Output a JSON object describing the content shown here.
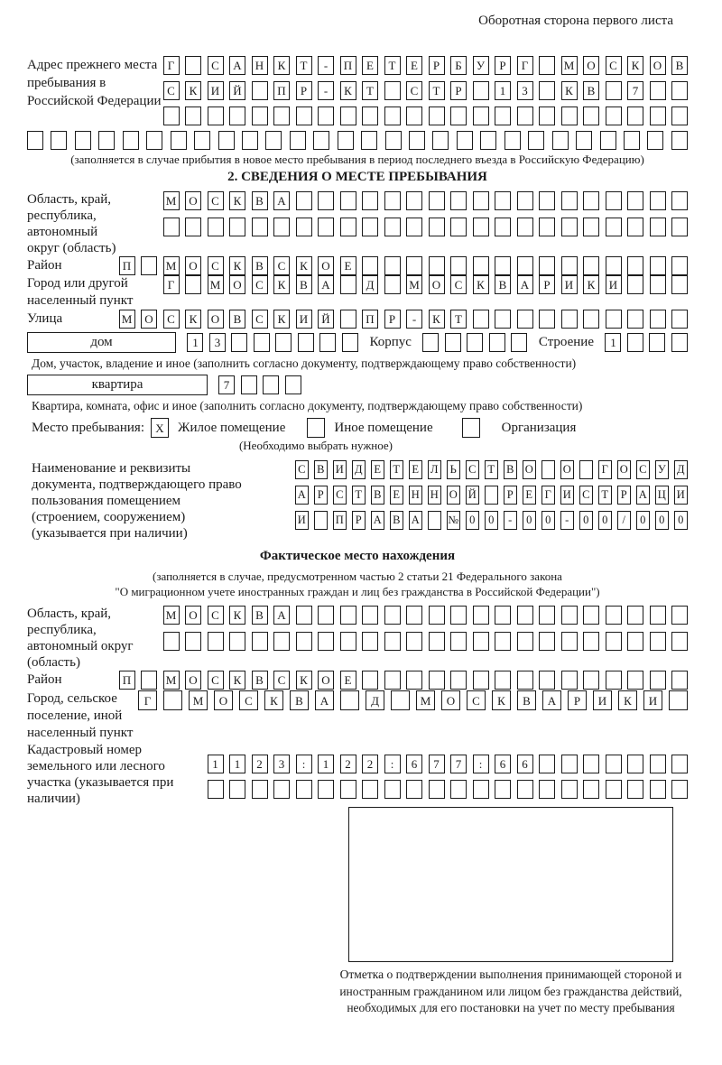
{
  "page": {
    "header_note": "Оборотная сторона первого листа"
  },
  "prev_address": {
    "label": "Адрес прежнего места пребывания в Российской Федерации",
    "row1": "Г_САНКТ-ПЕТЕРБУРГ_МОСКОВ",
    "row2": "СКИЙ_ПР-КТ_СТР_13_КВ_7__",
    "row3": "________________________",
    "row4": "____________________________",
    "note": "(заполняется в случае прибытия в новое место пребывания в период последнего въезда в Российскую Федерацию)"
  },
  "section2": {
    "title": "2. СВЕДЕНИЯ О МЕСТЕ ПРЕБЫВАНИЯ",
    "oblast": {
      "label": "Область, край, республика, автономный округ (область)",
      "row1": "МОСКВА__________________",
      "row2": "________________________"
    },
    "raion": {
      "label": "Район",
      "row": "П_МОСКВСКОЕ_______________"
    },
    "gorod": {
      "label": "Город или другой населенный пункт",
      "row": "Г_МОСКВА_Д_МОСКВАРИКИ___"
    },
    "ulitsa": {
      "label": "Улица",
      "row": "МОСКОВСКИЙ_ПР-КТ__________"
    },
    "dom": {
      "label": "дом",
      "cells": "13______",
      "korpus_label": "Корпус",
      "korpus_cells": "_____",
      "stroenie_label": "Строение",
      "stroenie_cells": "1___",
      "caption": "Дом, участок, владение и иное (заполнить согласно документу, подтверждающему право собственности)"
    },
    "kvartira": {
      "label": "квартира",
      "cells": "7___",
      "caption": "Квартира, комната, офис и иное (заполнить согласно документу, подтверждающему право собственности)"
    },
    "mesto": {
      "label": "Место пребывания:",
      "zhiloe_checked": "X",
      "zhiloe": "Жилое помещение",
      "inoe_checked": "_",
      "inoe": "Иное помещение",
      "org_checked": "_",
      "org": "Организация",
      "note": "(Необходимо выбрать нужное)"
    },
    "doc": {
      "label": "Наименование и реквизиты документа, подтверждающего право пользования помещением (строением, сооружением) (указывается при наличии)",
      "row1": "СВИДЕТЕЛЬСТВО_О_ГОСУД",
      "row2": "АРСТВЕННОЙ_РЕГИСТРАЦИ",
      "row3": "И_ПРАВА_№00-00-00/000"
    }
  },
  "fact": {
    "title": "Фактическое место нахождения",
    "note1": "(заполняется в случае, предусмотренном частью 2 статьи 21 Федерального закона",
    "note2": "\"О миграционном учете иностранных граждан и лиц без гражданства в Российской Федерации\")",
    "oblast": {
      "label": "Область, край, республика, автономный округ (область)",
      "row1": "МОСКВА__________________",
      "row2": "________________________"
    },
    "raion": {
      "label": "Район",
      "row": "П_МОСКВСКОЕ_______________"
    },
    "gorod": {
      "label": "Город, сельское поселение, иной населенный пункт",
      "row": "Г_МОСКВА_Д_МОСКВАРИКИ_"
    },
    "cadastre": {
      "label": "Кадастровый номер земельного или лесного участка (указывается при наличии)",
      "row1": "1123:122:677:66_______",
      "row2": "______________________"
    },
    "mark_caption": "Отметка о подтверждении выполнения принимающей стороной и иностранным гражданином или лицом без гражданства действий, необходимых для его постановки на учет по месту пребывания"
  }
}
